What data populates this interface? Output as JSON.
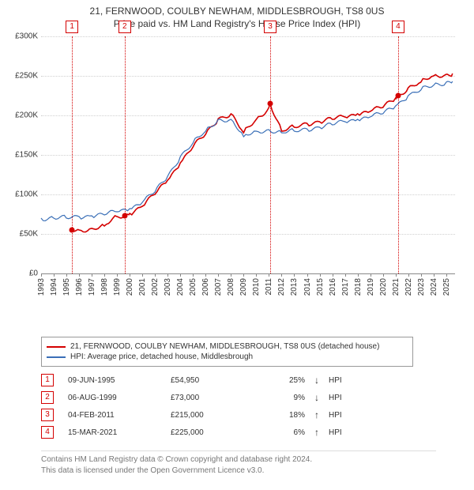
{
  "title_line1": "21, FERNWOOD, COULBY NEWHAM, MIDDLESBROUGH, TS8 0US",
  "title_line2": "Price paid vs. HM Land Registry's House Price Index (HPI)",
  "chart": {
    "type": "line",
    "background_color": "#ffffff",
    "grid_color": "#d0d0d0",
    "axis_color": "#888888",
    "x_years": [
      1993,
      1994,
      1995,
      1996,
      1997,
      1998,
      1999,
      2000,
      2001,
      2002,
      2003,
      2004,
      2005,
      2006,
      2007,
      2008,
      2009,
      2010,
      2011,
      2012,
      2013,
      2014,
      2015,
      2016,
      2017,
      2018,
      2019,
      2020,
      2021,
      2022,
      2023,
      2024,
      2025
    ],
    "x_min": 1993,
    "x_max": 2025.7,
    "y_min": 0,
    "y_max": 300000,
    "y_ticks": [
      0,
      50000,
      100000,
      150000,
      200000,
      250000,
      300000
    ],
    "y_tick_labels": [
      "£0",
      "£50K",
      "£100K",
      "£150K",
      "£200K",
      "£250K",
      "£300K"
    ],
    "x_label_fontsize": 10,
    "y_label_fontsize": 10,
    "series": [
      {
        "id": "property",
        "label": "21, FERNWOOD, COULBY NEWHAM, MIDDLESBROUGH, TS8 0US (detached house)",
        "color": "#d40000",
        "line_width": 1.6,
        "x": [
          1995.44,
          1996,
          1997,
          1998,
          1999,
          1999.6,
          2000,
          2001,
          2002,
          2003,
          2004,
          2005,
          2006,
          2007,
          2008,
          2009,
          2010,
          2011,
          2011.1,
          2012,
          2013,
          2014,
          2015,
          2016,
          2017,
          2018,
          2019,
          2020,
          2021,
          2021.2,
          2022,
          2023,
          2024,
          2025,
          2025.5
        ],
        "y": [
          54950,
          55000,
          57000,
          60000,
          72000,
          73000,
          76000,
          85000,
          100000,
          118000,
          140000,
          160000,
          176000,
          196000,
          202000,
          178000,
          195000,
          210000,
          215000,
          180000,
          185000,
          190000,
          192000,
          195000,
          198000,
          202000,
          205000,
          210000,
          222000,
          225000,
          235000,
          242000,
          250000,
          252000,
          253000
        ]
      },
      {
        "id": "hpi",
        "label": "HPI: Average price, detached house, Middlesbrough",
        "color": "#3a6fb7",
        "line_width": 1.2,
        "x": [
          1993,
          1994,
          1995,
          1996,
          1997,
          1998,
          1999,
          2000,
          2001,
          2002,
          2003,
          2004,
          2005,
          2006,
          2007,
          2008,
          2009,
          2010,
          2011,
          2012,
          2013,
          2014,
          2015,
          2016,
          2017,
          2018,
          2019,
          2020,
          2021,
          2022,
          2023,
          2024,
          2025,
          2025.5
        ],
        "y": [
          70000,
          70000,
          70000,
          72000,
          73000,
          74000,
          78000,
          82000,
          90000,
          103000,
          123000,
          148000,
          165000,
          180000,
          195000,
          195000,
          173000,
          180000,
          182000,
          178000,
          180000,
          183000,
          185000,
          188000,
          192000,
          195000,
          198000,
          202000,
          212000,
          225000,
          232000,
          238000,
          242000,
          243000
        ]
      }
    ],
    "events": [
      {
        "n": "1",
        "year": 1995.44,
        "price": 54950,
        "color": "#d40000"
      },
      {
        "n": "2",
        "year": 1999.6,
        "price": 73000,
        "color": "#d40000"
      },
      {
        "n": "3",
        "year": 2011.1,
        "price": 215000,
        "color": "#d40000"
      },
      {
        "n": "4",
        "year": 2021.2,
        "price": 225000,
        "color": "#d40000"
      }
    ]
  },
  "legend": [
    {
      "color": "#d40000",
      "label": "21, FERNWOOD, COULBY NEWHAM, MIDDLESBROUGH, TS8 0US (detached house)"
    },
    {
      "color": "#3a6fb7",
      "label": "HPI: Average price, detached house, Middlesbrough"
    }
  ],
  "event_table_header": {
    "hpi_suffix": "HPI"
  },
  "event_table": [
    {
      "n": "1",
      "date": "09-JUN-1995",
      "price": "£54,950",
      "pct": "25%",
      "dir": "↓",
      "color": "#d40000"
    },
    {
      "n": "2",
      "date": "06-AUG-1999",
      "price": "£73,000",
      "pct": "9%",
      "dir": "↓",
      "color": "#d40000"
    },
    {
      "n": "3",
      "date": "04-FEB-2011",
      "price": "£215,000",
      "pct": "18%",
      "dir": "↑",
      "color": "#d40000"
    },
    {
      "n": "4",
      "date": "15-MAR-2021",
      "price": "£225,000",
      "pct": "6%",
      "dir": "↑",
      "color": "#d40000"
    }
  ],
  "footer_line1": "Contains HM Land Registry data © Crown copyright and database right 2024.",
  "footer_line2": "This data is licensed under the Open Government Licence v3.0."
}
